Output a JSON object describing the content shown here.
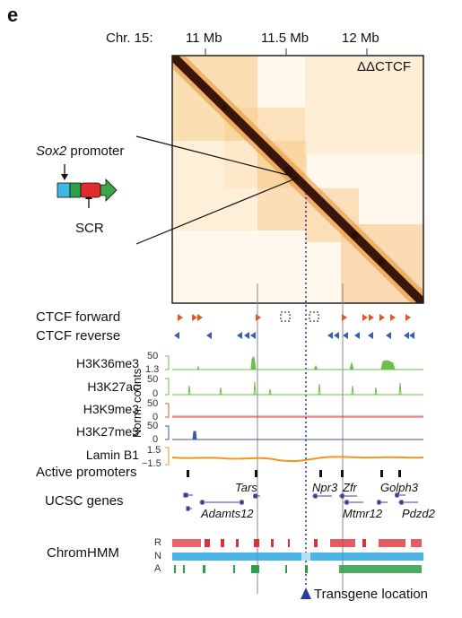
{
  "panel": {
    "letter": "e"
  },
  "axis": {
    "chrom_label": "Chr. 15:",
    "ticks": [
      {
        "label": "11 Mb"
      },
      {
        "label": "11.5 Mb"
      },
      {
        "label": "12 Mb"
      }
    ]
  },
  "heatmap": {
    "condition": "ΔΔCTCF"
  },
  "construct": {
    "promoter_label_italic": "Sox2",
    "promoter_label_rest": " promoter",
    "scr_label": "SCR",
    "colors": {
      "blue": "#3db7e4",
      "green": "#2e9e48",
      "red": "#e22b2b",
      "arrow": "#3aa54a"
    }
  },
  "tracks": {
    "ctcf_forward": "CTCF forward",
    "ctcf_reverse": "CTCF reverse",
    "h3k36me3": {
      "label": "H3K36me3",
      "max": "50",
      "min": "1.3",
      "color": "#6cbf4a"
    },
    "h3k27ac": {
      "label": "H3K27ac",
      "max": "50",
      "min": "0",
      "color": "#6cbf4a"
    },
    "h3k9me3": {
      "label": "H3K9me3",
      "max": "50",
      "min": "0",
      "color": "#e05050"
    },
    "h3k27me3": {
      "label": "H3K27me3",
      "max": "50",
      "min": "0",
      "color": "#3f55a8"
    },
    "norm_counts": "Norm. counts",
    "lamin_b1": {
      "label": "Lamin B1",
      "max": "1.5",
      "min": "−1.5",
      "color": "#f0961e"
    },
    "active_promoters": "Active promoters",
    "ucsc_genes": "UCSC genes",
    "chromhmm": {
      "label": "ChromHMM",
      "states": [
        "R",
        "N",
        "A"
      ],
      "colors": {
        "R": "#e0313a",
        "N": "#2ea8e0",
        "A": "#2e9e48"
      }
    }
  },
  "genes": {
    "tars": "Tars",
    "adamts12": "Adamts12",
    "npr3": "Npr3",
    "zfr": "Zfr",
    "golph3": "Golph3",
    "mtmr12": "Mtmr12",
    "pdzd2": "Pdzd2"
  },
  "transgene": {
    "label": "Transgene location",
    "color": "#2b3a9e"
  },
  "ctcf_colors": {
    "forward": "#e0572a",
    "reverse": "#3a5fb0"
  }
}
